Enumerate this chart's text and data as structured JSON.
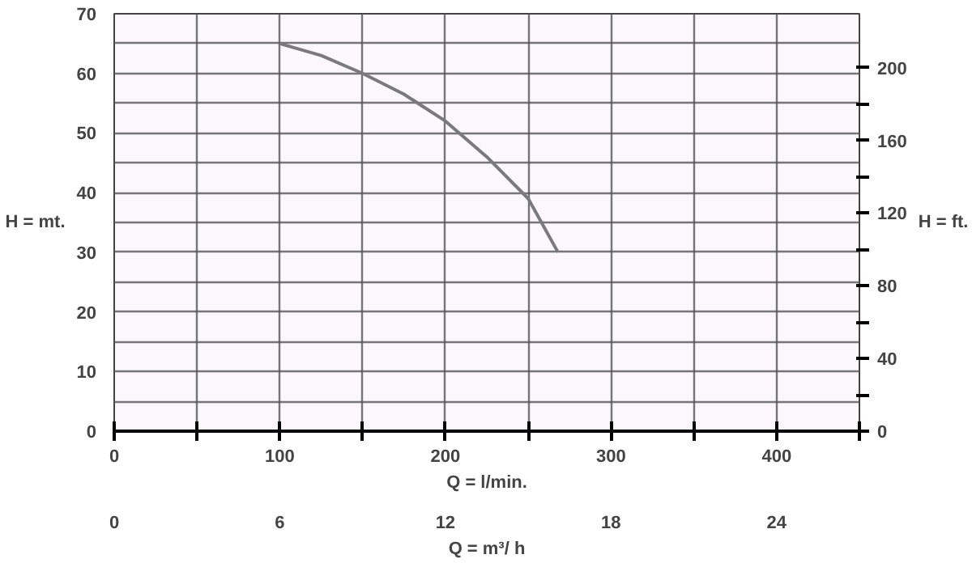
{
  "chart_data": {
    "type": "line",
    "ylabel": "H = mt.",
    "y2label": "H = ft.",
    "xlabel": "Q = l/min.",
    "x2label": "Q = m³/ h",
    "x": [
      100,
      125,
      150,
      175,
      200,
      225,
      250,
      268
    ],
    "series": [
      {
        "color": "#7a7a7a",
        "values": [
          65,
          63,
          60,
          56.5,
          52,
          46,
          39,
          30
        ]
      }
    ],
    "xlim": [
      0,
      450
    ],
    "xticks": [
      0,
      {
        "value": 50,
        "label": null
      },
      100,
      {
        "value": 150,
        "label": null
      },
      200,
      {
        "value": 250,
        "label": null
      },
      300,
      {
        "value": 350,
        "label": null
      },
      400,
      {
        "value": 450,
        "label": null
      }
    ],
    "x2lim": [
      0,
      27
    ],
    "x2ticks": [
      0,
      6,
      12,
      18,
      24
    ],
    "ylim": [
      0,
      70
    ],
    "yticks": [
      0,
      {
        "value": 5,
        "label": null
      },
      10,
      {
        "value": 15,
        "label": null
      },
      20,
      {
        "value": 25,
        "label": null
      },
      30,
      {
        "value": 35,
        "label": null
      },
      40,
      {
        "value": 45,
        "label": null
      },
      50,
      {
        "value": 55,
        "label": null
      },
      60,
      {
        "value": 65,
        "label": null
      },
      70
    ],
    "y2lim": [
      0,
      229.66
    ],
    "y2ticks": [
      0,
      {
        "value": 20,
        "label": null
      },
      40,
      {
        "value": 60,
        "label": null
      },
      80,
      {
        "value": 100,
        "label": null
      },
      120,
      {
        "value": 140,
        "label": null
      },
      160,
      {
        "value": 180,
        "label": null
      },
      200
    ],
    "grid": true,
    "marker": "none",
    "line_style": "solid"
  }
}
